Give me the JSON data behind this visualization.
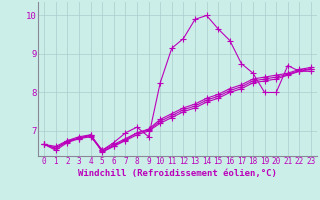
{
  "xlabel": "Windchill (Refroidissement éolien,°C)",
  "bg_color": "#cceee8",
  "line_color": "#bb00bb",
  "grid_color": "#aacccc",
  "xlim": [
    -0.5,
    23.5
  ],
  "ylim": [
    6.35,
    10.35
  ],
  "xticks": [
    0,
    1,
    2,
    3,
    4,
    5,
    6,
    7,
    8,
    9,
    10,
    11,
    12,
    13,
    14,
    15,
    16,
    17,
    18,
    19,
    20,
    21,
    22,
    23
  ],
  "yticks": [
    7,
    8,
    9,
    10
  ],
  "series": [
    [
      6.65,
      6.6,
      6.75,
      6.8,
      6.85,
      6.5,
      6.7,
      6.95,
      7.1,
      6.85,
      8.25,
      9.15,
      9.4,
      9.9,
      10.0,
      9.65,
      9.35,
      8.75,
      8.5,
      8.0,
      8.0,
      8.7,
      8.55,
      8.55
    ],
    [
      6.65,
      6.55,
      6.75,
      6.85,
      6.9,
      6.5,
      6.65,
      6.8,
      6.95,
      7.05,
      7.3,
      7.45,
      7.6,
      7.7,
      7.85,
      7.95,
      8.1,
      8.2,
      8.35,
      8.4,
      8.45,
      8.5,
      8.6,
      8.65
    ],
    [
      6.65,
      6.5,
      6.7,
      6.8,
      6.9,
      6.45,
      6.6,
      6.75,
      6.9,
      7.0,
      7.2,
      7.35,
      7.5,
      7.6,
      7.75,
      7.85,
      8.0,
      8.1,
      8.25,
      8.3,
      8.35,
      8.45,
      8.55,
      8.6
    ],
    [
      6.65,
      6.55,
      6.72,
      6.82,
      6.88,
      6.47,
      6.62,
      6.77,
      6.95,
      7.02,
      7.25,
      7.4,
      7.55,
      7.65,
      7.8,
      7.9,
      8.05,
      8.15,
      8.3,
      8.35,
      8.4,
      8.47,
      8.57,
      8.62
    ]
  ],
  "marker": "+",
  "markersize": 4,
  "linewidth": 0.8,
  "tick_fontsize": 5.5,
  "xlabel_fontsize": 6.5
}
